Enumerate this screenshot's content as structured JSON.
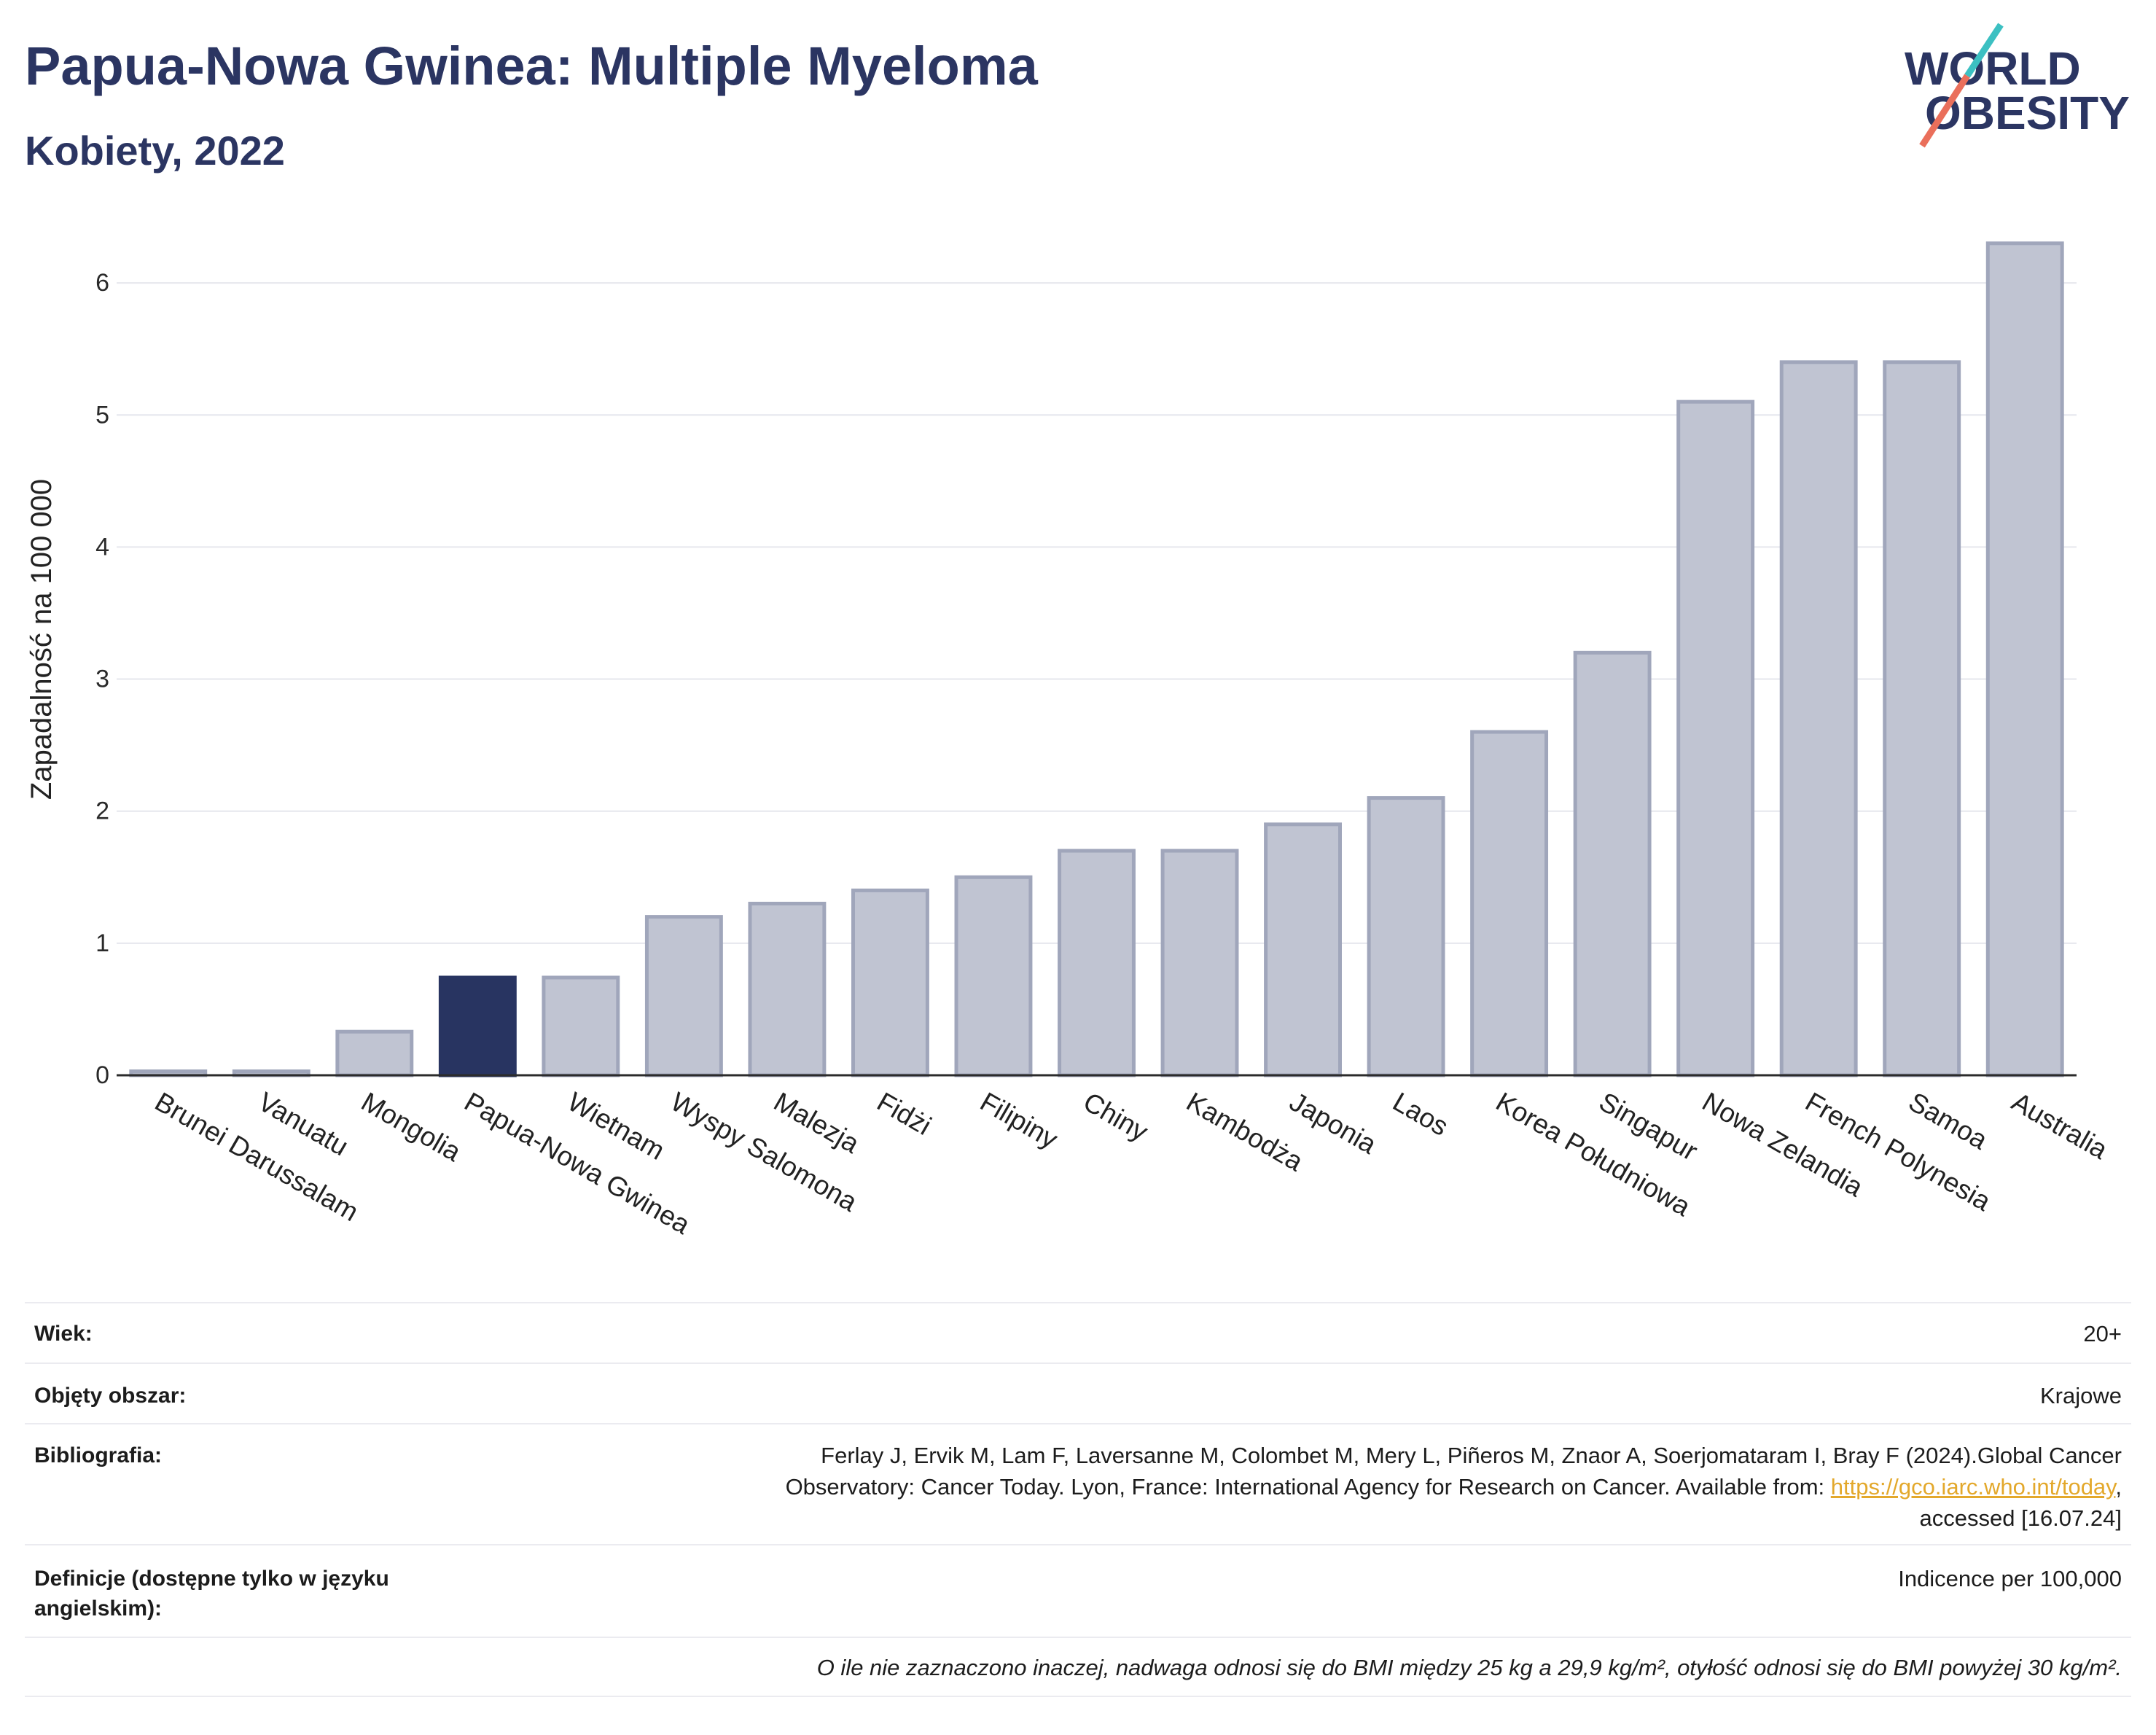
{
  "chart_data": {
    "type": "bar",
    "title": "Papua-Nowa Gwinea: Multiple Myeloma",
    "subtitle": "Kobiety, 2022",
    "xlabel": "",
    "ylabel": "Zapadalność na 100 000",
    "categories": [
      "Brunei Darussalam",
      "Vanuatu",
      "Mongolia",
      "Papua-Nowa Gwinea",
      "Wietnam",
      "Wyspy Salomona",
      "Malezja",
      "Fidżi",
      "Filipiny",
      "Chiny",
      "Kambodża",
      "Japonia",
      "Laos",
      "Korea Południowa",
      "Singapur",
      "Nowa Zelandia",
      "French Polynesia",
      "Samoa",
      "Australia"
    ],
    "values": [
      0.03,
      0.03,
      0.33,
      0.74,
      0.74,
      1.2,
      1.3,
      1.4,
      1.5,
      1.7,
      1.7,
      1.9,
      2.1,
      2.6,
      3.2,
      5.1,
      5.4,
      5.4,
      6.3
    ],
    "highlight_index": 3,
    "yticks": [
      0,
      1,
      2,
      3,
      4,
      5,
      6
    ],
    "ylim": [
      0,
      6.63
    ],
    "grid": true,
    "legend": "none",
    "colors": {
      "bar": "#c0c4d2",
      "bar_outline": "#a0a6bb",
      "highlight": "#283461",
      "axis": "#2b2b2b",
      "grid": "#e6e7ed"
    }
  },
  "logo": {
    "line1": "WORLD",
    "line2": "OBESITY",
    "text_color": "#2b3562",
    "slash_top_color": "#3cc0c2",
    "slash_bottom_color": "#ea6f5b"
  },
  "info": {
    "age": {
      "label": "Wiek:",
      "value": "20+"
    },
    "area": {
      "label": "Objęty obszar:",
      "value": "Krajowe"
    },
    "bibliography": {
      "label": "Bibliografia:",
      "line1": "Ferlay J, Ervik M, Lam F, Laversanne M, Colombet M, Mery L, Piñeros M, Znaor A, Soerjomataram I, Bray F (2024).Global Cancer",
      "line2": "Observatory: Cancer Today. Lyon, France: International Agency for Research on Cancer. Available from: ",
      "link": "https://gco.iarc.who.int/today",
      "line2_end": ",",
      "line3": "accessed [16.07.24]"
    },
    "definitions": {
      "label": "Definicje (dostępne tylko w języku angielskim):",
      "value": "Indicence per 100,000"
    }
  },
  "footnote": "O ile nie zaznaczono inaczej, nadwaga odnosi się do BMI między 25 kg a 29,9 kg/m², otyłość odnosi się do BMI powyżej 30 kg/m²."
}
